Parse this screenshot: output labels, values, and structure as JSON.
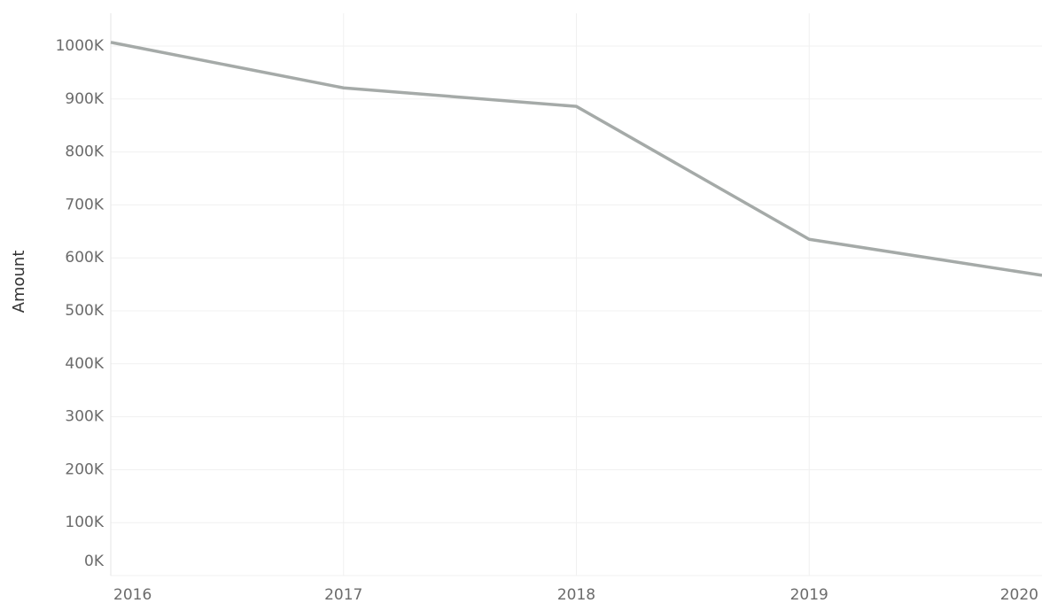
{
  "chart_data": {
    "type": "line",
    "y_label": "Amount",
    "x": [
      2016,
      2017,
      2018,
      2019,
      2020
    ],
    "series": [
      {
        "name": "Amount",
        "color": "#a5aaa8",
        "values": [
          1007000,
          921000,
          886000,
          635000,
          567000
        ]
      }
    ],
    "xlim": [
      2016,
      2020
    ],
    "xticks": [
      2016,
      2017,
      2018,
      2019,
      2020
    ],
    "ylim": [
      0,
      1000000
    ],
    "yticks": [
      {
        "value": 0,
        "label": "0K"
      },
      {
        "value": 100000,
        "label": "100K"
      },
      {
        "value": 200000,
        "label": "200K"
      },
      {
        "value": 300000,
        "label": "300K"
      },
      {
        "value": 400000,
        "label": "400K"
      },
      {
        "value": 500000,
        "label": "500K"
      },
      {
        "value": 600000,
        "label": "600K"
      },
      {
        "value": 700000,
        "label": "700K"
      },
      {
        "value": 800000,
        "label": "800K"
      },
      {
        "value": 900000,
        "label": "900K"
      },
      {
        "value": 1000000,
        "label": "1000K"
      }
    ],
    "grid": true
  }
}
